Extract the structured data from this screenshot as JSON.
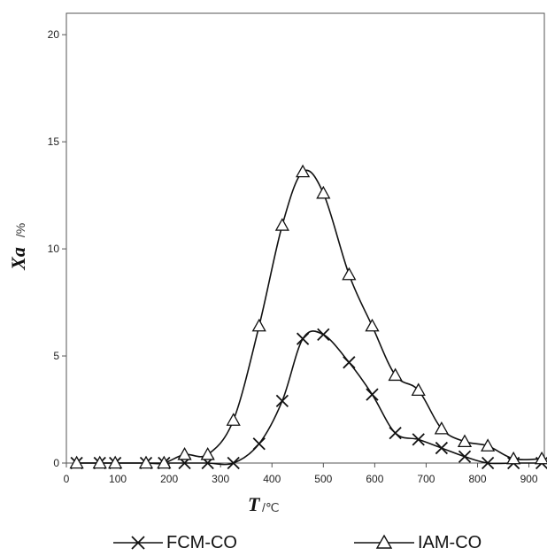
{
  "chart_data": {
    "type": "line",
    "x_label_main": "T",
    "x_label_unit": "/℃",
    "y_label_main": "Xa",
    "y_label_unit": "/%",
    "xlim": [
      0,
      930
    ],
    "ylim": [
      0,
      21
    ],
    "x_ticks": [
      0,
      100,
      200,
      300,
      400,
      500,
      600,
      700,
      800,
      900
    ],
    "y_ticks": [
      0,
      5,
      10,
      15,
      20
    ],
    "series": [
      {
        "name": "FCM-CO",
        "marker": "x",
        "x": [
          20,
          65,
          95,
          155,
          190,
          230,
          275,
          325,
          375,
          420,
          460,
          500,
          550,
          595,
          640,
          685,
          730,
          775,
          820,
          870,
          925
        ],
        "y": [
          0,
          0,
          0,
          0,
          0,
          0,
          0,
          0,
          0.9,
          2.9,
          5.8,
          6.0,
          4.7,
          3.2,
          1.4,
          1.1,
          0.7,
          0.3,
          0,
          0,
          0
        ]
      },
      {
        "name": "IAM-CO",
        "marker": "triangle",
        "x": [
          20,
          65,
          95,
          155,
          190,
          230,
          275,
          325,
          375,
          420,
          460,
          500,
          550,
          595,
          640,
          685,
          730,
          775,
          820,
          870,
          925
        ],
        "y": [
          0,
          0,
          0,
          0,
          0,
          0.4,
          0.4,
          2.0,
          6.4,
          11.1,
          13.6,
          12.6,
          8.8,
          6.4,
          4.1,
          3.4,
          1.6,
          1.0,
          0.8,
          0.2,
          0.2
        ]
      }
    ]
  }
}
